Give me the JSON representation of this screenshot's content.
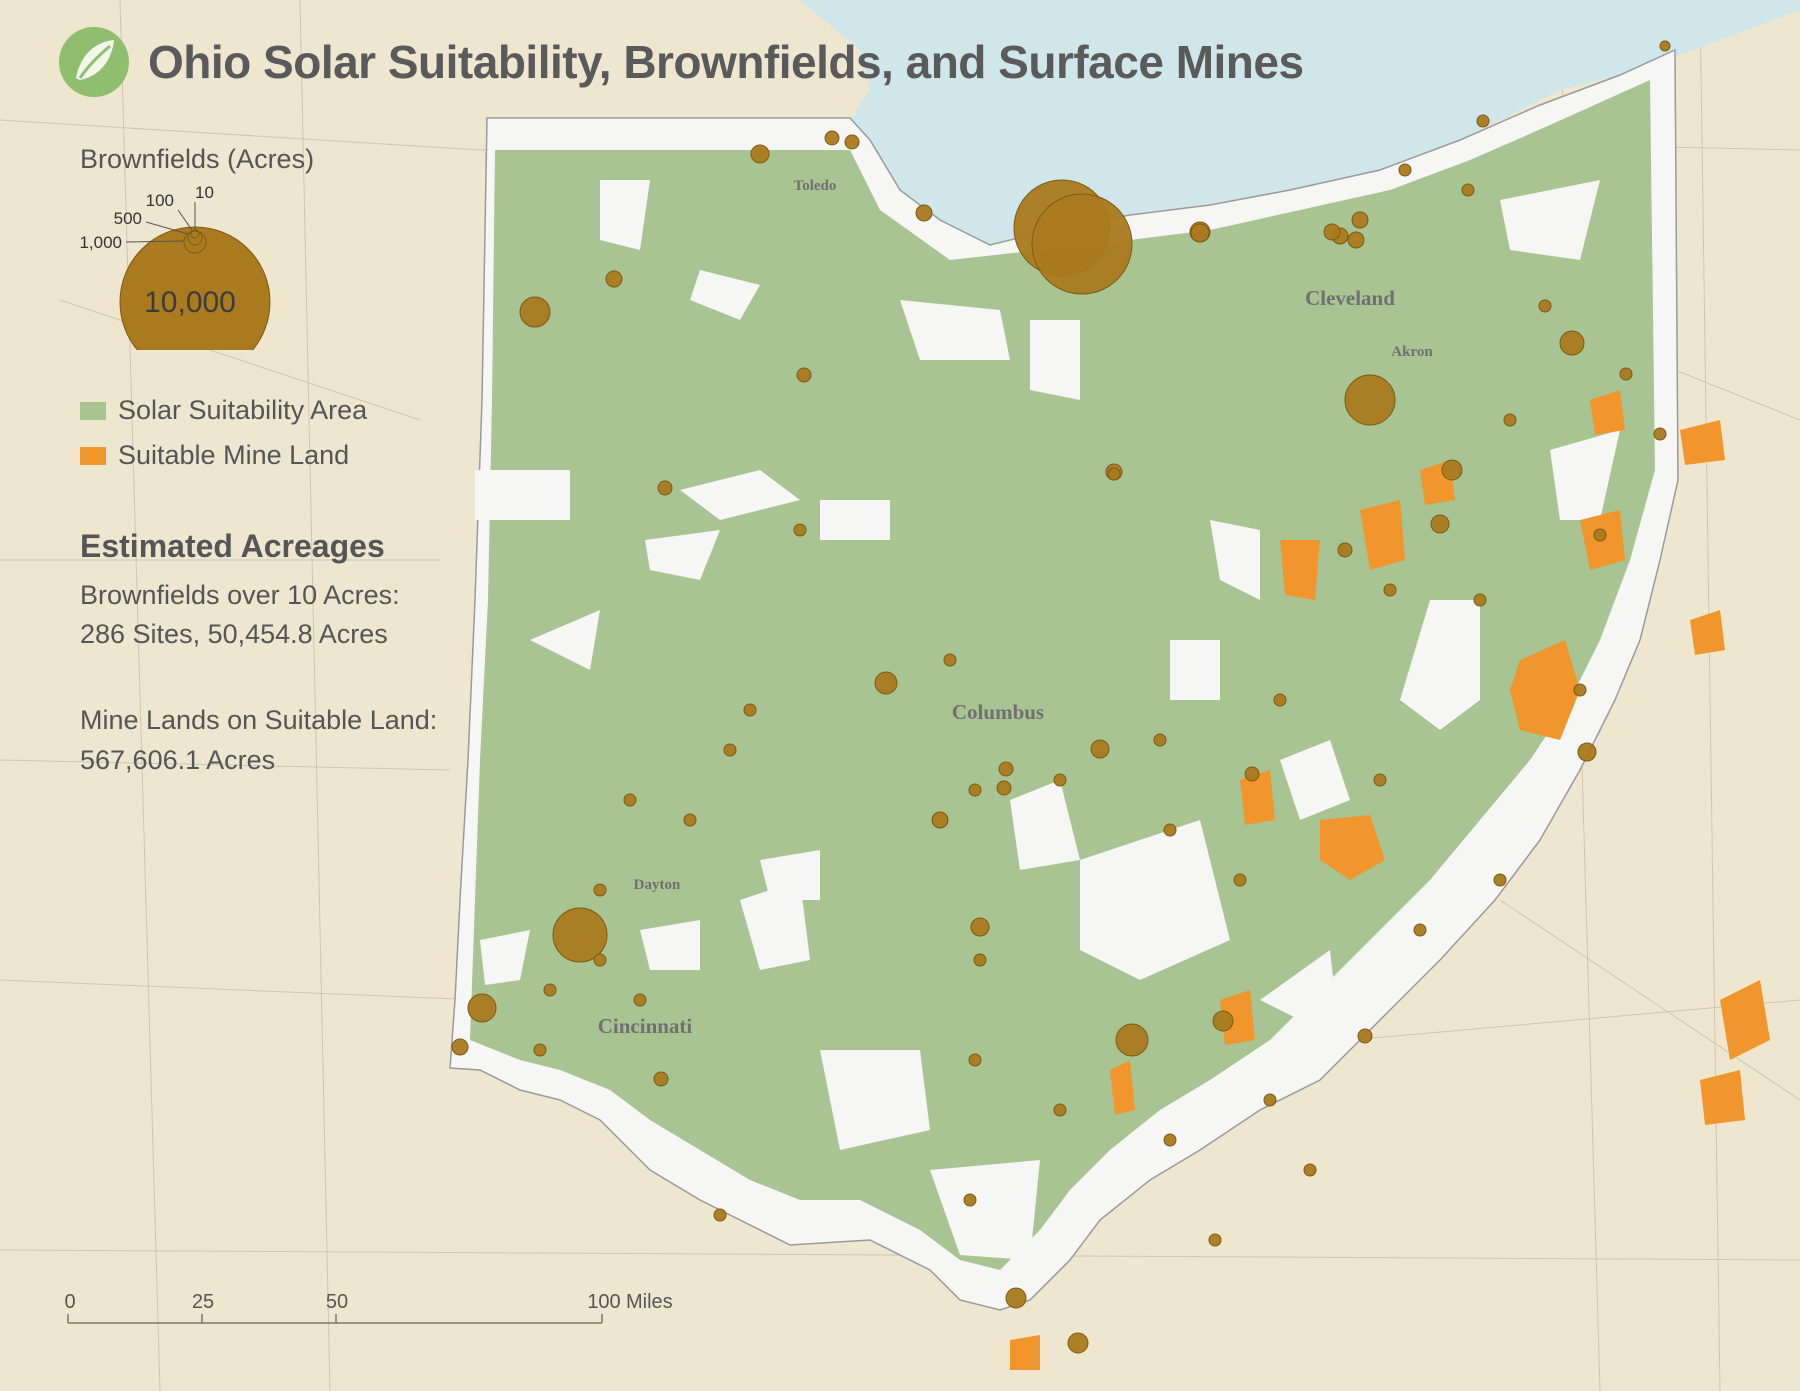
{
  "title": "Ohio Solar Suitability, Brownfields, and Surface Mines",
  "logo": {
    "icon": "leaf-icon"
  },
  "legend": {
    "brownfield_heading": "Brownfields (Acres)",
    "sizes": [
      {
        "label": "10",
        "value": 10
      },
      {
        "label": "100",
        "value": 100
      },
      {
        "label": "500",
        "value": 500
      },
      {
        "label": "1,000",
        "value": 1000
      },
      {
        "label": "10,000",
        "value": 10000
      }
    ],
    "items": [
      {
        "label": "Solar Suitability Area",
        "color": "#a8c493"
      },
      {
        "label": "Suitable Mine Land",
        "color": "#f0962c"
      }
    ],
    "brownfield_color": "#a97a1e"
  },
  "stats": {
    "heading": "Estimated Acreages",
    "brownfields_label": "Brownfields over 10 Acres:",
    "brownfields_value": "286 Sites, 50,454.8 Acres",
    "mines_label": "Mine Lands on Suitable Land:",
    "mines_value": "567,606.1 Acres"
  },
  "cities": [
    {
      "name": "Toledo"
    },
    {
      "name": "Cleveland"
    },
    {
      "name": "Akron"
    },
    {
      "name": "Columbus"
    },
    {
      "name": "Dayton"
    },
    {
      "name": "Cincinnati"
    }
  ],
  "scale_bar": {
    "ticks": [
      "0",
      "25",
      "50",
      "100"
    ],
    "unit": "Miles"
  },
  "colors": {
    "background": "#efe6cf",
    "lake": "#cfe6ea",
    "state_fill": "#f6f6f4",
    "suitability": "#a8c493",
    "mine": "#f0962c",
    "brownfield": "#a97a1e"
  }
}
